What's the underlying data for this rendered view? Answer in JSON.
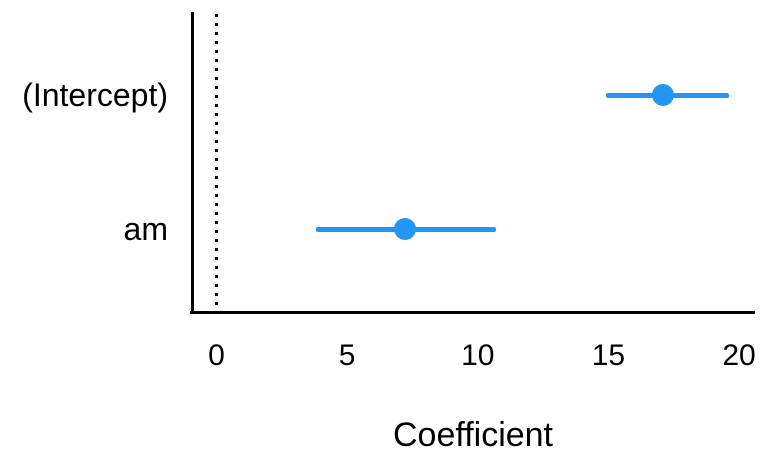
{
  "chart_data": {
    "type": "scatter",
    "subtype": "coefficient-dot-whisker",
    "title": "",
    "xlabel": "Coefficient",
    "ylabel": "",
    "categories": [
      "(Intercept)",
      "am"
    ],
    "points": [
      {
        "label": "(Intercept)",
        "estimate": 17.1,
        "ci_low": 14.9,
        "ci_high": 19.6
      },
      {
        "label": "am",
        "estimate": 7.2,
        "ci_low": 3.8,
        "ci_high": 10.7
      }
    ],
    "x_ticks": [
      0,
      5,
      10,
      15,
      20
    ],
    "xlim": [
      -1,
      20.6
    ],
    "reference_line_x": 0,
    "reference_line_style": "dotted",
    "grid": false,
    "legend_position": "none",
    "point_color": "#2396f3",
    "axis_color": "#000000",
    "text_color": "#000000",
    "background_color": "#ffffff"
  }
}
